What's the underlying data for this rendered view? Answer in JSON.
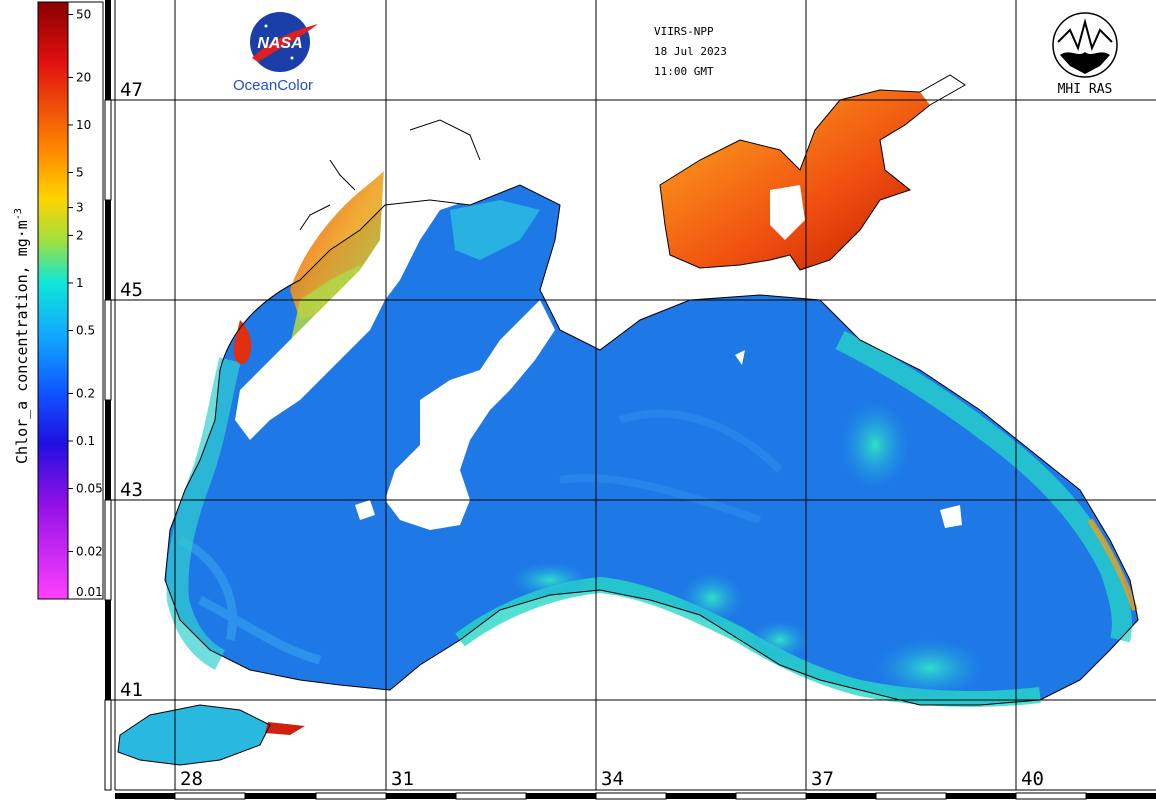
{
  "header": {
    "sensor": "VIIRS-NPP",
    "date": "18 Jul 2023",
    "time": "11:00 GMT"
  },
  "logos": {
    "nasa_text": "NASA",
    "oceancolor": "OceanColor",
    "mhi_text": "MHI RAS"
  },
  "colorbar": {
    "title": "Chlor_a concentration, mg·m",
    "title_exponent": "-3",
    "ticks": [
      "50",
      "20",
      "10",
      "5",
      "3",
      "2",
      "1",
      "0.5",
      "0.2",
      "0.1",
      "0.05",
      "0.02",
      "0.01"
    ],
    "scale": "log",
    "range": [
      0.01,
      60
    ]
  },
  "latitudes": [
    "47",
    "45",
    "43",
    "41"
  ],
  "longitudes": [
    "28",
    "31",
    "34",
    "37",
    "40"
  ],
  "colors": {
    "land": "#ffffff",
    "coast": "#000000",
    "grid": "#000000",
    "low_chl": "#1e78e6",
    "high_chl": "#c81e00",
    "nasa_blue": "#1a3fa8",
    "nasa_red": "#e02020",
    "oceancolor_text": "#1f4fd0"
  }
}
